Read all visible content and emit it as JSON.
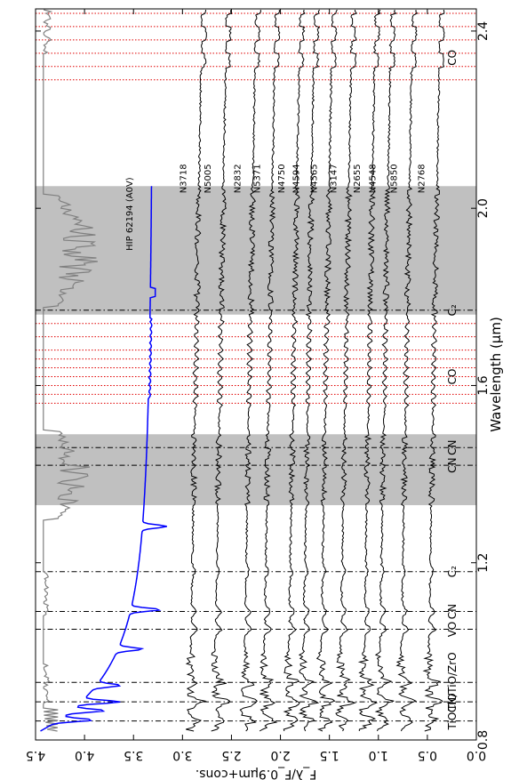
{
  "chart_data": {
    "type": "line",
    "orientation": "rotated-90",
    "xlabel": "Wavelength (μm)",
    "ylabel": "F_λ/F_0.9μm+cons.",
    "xlim": [
      0.8,
      2.45
    ],
    "ylim": [
      0.0,
      4.5
    ],
    "x_ticks": [
      0.8,
      1.2,
      1.6,
      2.0,
      2.4
    ],
    "y_ticks": [
      0.0,
      0.5,
      1.0,
      1.5,
      2.0,
      2.5,
      3.0,
      3.5,
      4.0,
      4.5
    ],
    "grid": false,
    "shaded_regions": [
      [
        1.33,
        1.49
      ],
      [
        1.76,
        2.05
      ]
    ],
    "band_markers": [
      {
        "label": "TiO",
        "x": 0.843
      },
      {
        "label": "TiO",
        "x": 0.886
      },
      {
        "label": "CN/TiO/ZrO",
        "x": 0.93
      },
      {
        "label": "VO",
        "x": 1.05
      },
      {
        "label": "CN",
        "x": 1.09
      },
      {
        "label": "C₂",
        "x": 1.18
      },
      {
        "label": "CN",
        "x": 1.42
      },
      {
        "label": "CN",
        "x": 1.46
      },
      {
        "label": "C₂",
        "x": 1.77
      },
      {
        "label": "CO",
        "x": 1.62
      },
      {
        "label": "CO",
        "x": 2.34
      }
    ],
    "band_lines": [
      0.843,
      0.886,
      0.93,
      1.05,
      1.09,
      1.18,
      1.42,
      1.46,
      1.77
    ],
    "co_lines": [
      1.56,
      1.58,
      1.6,
      1.62,
      1.64,
      1.66,
      1.68,
      1.71,
      1.74,
      2.29,
      2.32,
      2.35,
      2.38,
      2.41,
      2.44
    ],
    "series": [
      {
        "name": "HIP 62194 (A0V)",
        "color": "#0000ff",
        "offset": 3.3,
        "kind": "standard"
      },
      {
        "name": "N3718",
        "color": "#000000",
        "offset": 2.85
      },
      {
        "name": "N5005",
        "color": "#000000",
        "offset": 2.6
      },
      {
        "name": "N2832",
        "color": "#000000",
        "offset": 2.3
      },
      {
        "name": "N5371",
        "color": "#000000",
        "offset": 2.1
      },
      {
        "name": "N4750",
        "color": "#000000",
        "offset": 1.85
      },
      {
        "name": "N4594",
        "color": "#000000",
        "offset": 1.7
      },
      {
        "name": "N4565",
        "color": "#000000",
        "offset": 1.52
      },
      {
        "name": "N3147",
        "color": "#000000",
        "offset": 1.32
      },
      {
        "name": "N2655",
        "color": "#000000",
        "offset": 1.08
      },
      {
        "name": "N4548",
        "color": "#000000",
        "offset": 0.92
      },
      {
        "name": "N5850",
        "color": "#000000",
        "offset": 0.7
      },
      {
        "name": "N2768",
        "color": "#000000",
        "offset": 0.42
      },
      {
        "name": "",
        "color": "#808080",
        "offset": 4.42,
        "kind": "telluric"
      }
    ]
  }
}
